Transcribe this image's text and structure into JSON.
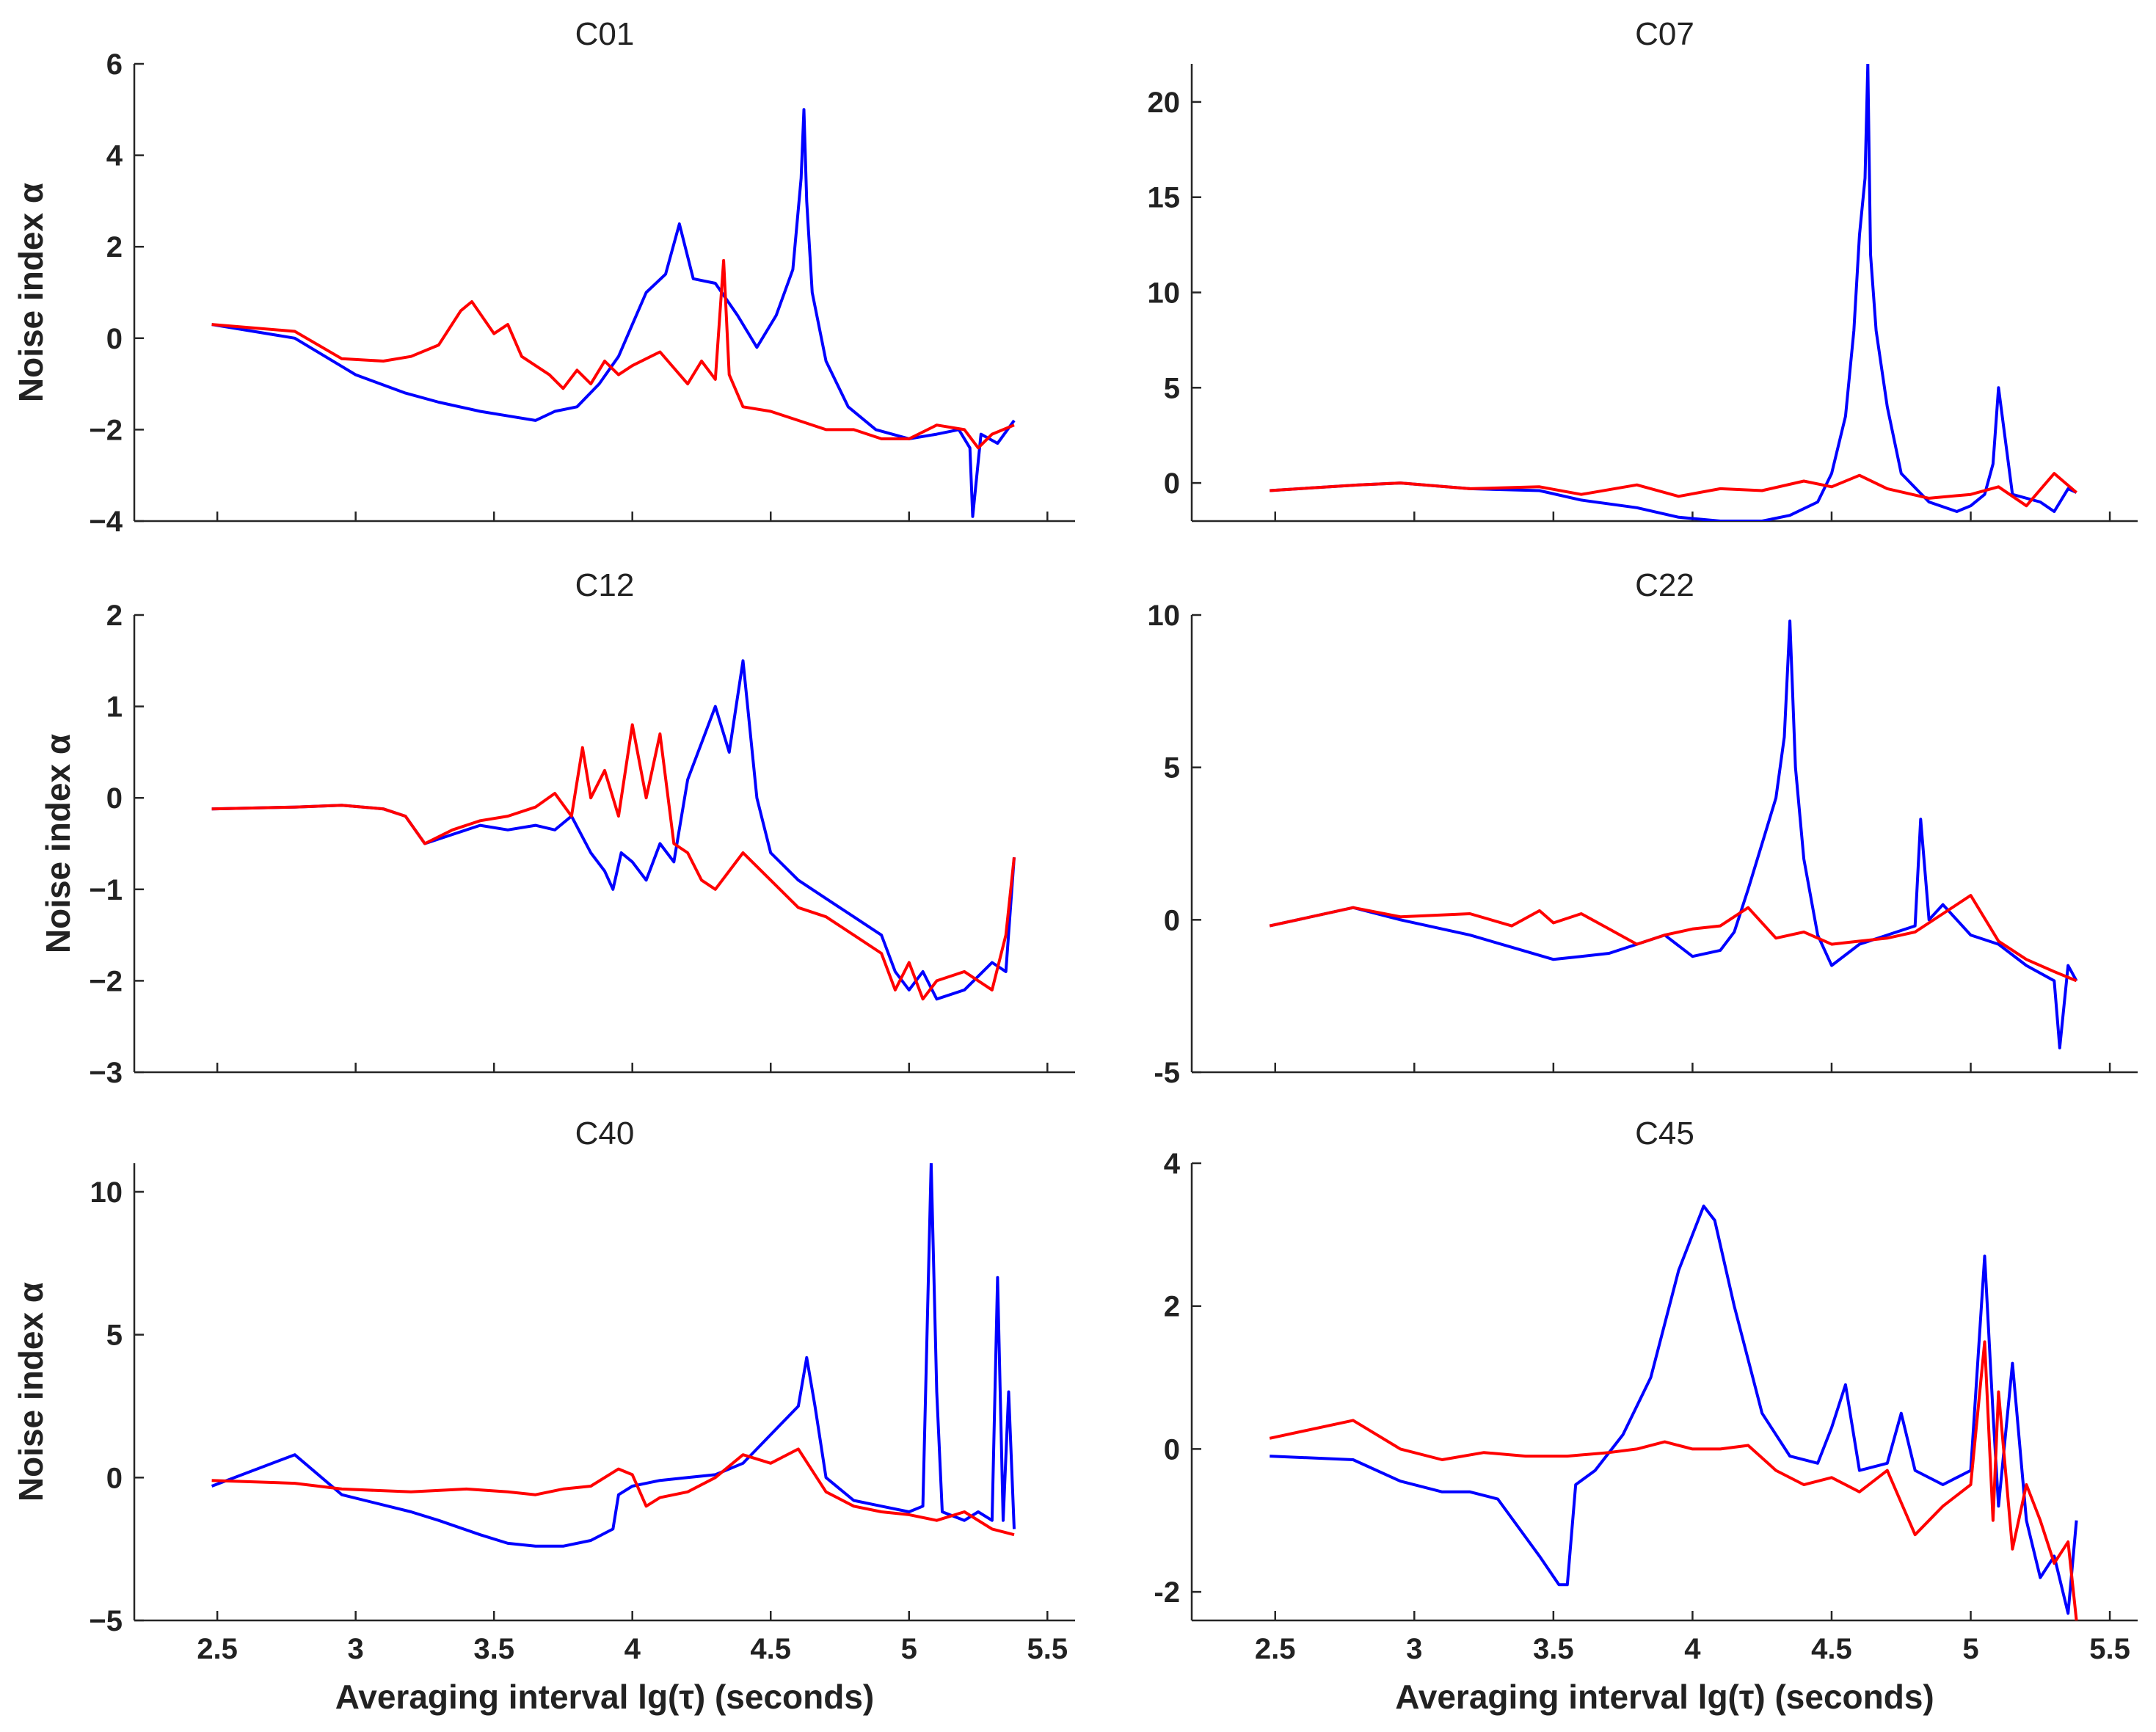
{
  "colors": {
    "series_1": "#0000ff",
    "series_2": "#ff0000",
    "axis": "#262626"
  },
  "chart_data": [
    {
      "type": "line",
      "title": "C01",
      "ylabel": "Noise index α",
      "xlabel": "",
      "xlim": [
        2.2,
        5.6
      ],
      "ylim": [
        -4,
        6
      ],
      "xticks": [
        2.5,
        3,
        3.5,
        4,
        4.5,
        5,
        5.5
      ],
      "xtick_labels": [
        "",
        "",
        "",
        "",
        "",
        "",
        ""
      ],
      "yticks": [
        -4,
        -2,
        0,
        2,
        4,
        6
      ],
      "ytick_labels": [
        "−4",
        "−2",
        "0",
        "2",
        "4",
        "6"
      ],
      "series": [
        {
          "name": "blue",
          "color": "#0000ff",
          "x": [
            2.48,
            2.78,
            3.0,
            3.18,
            3.3,
            3.45,
            3.55,
            3.65,
            3.72,
            3.8,
            3.88,
            3.95,
            4.0,
            4.05,
            4.12,
            4.17,
            4.22,
            4.3,
            4.38,
            4.45,
            4.52,
            4.58,
            4.61,
            4.62,
            4.63,
            4.65,
            4.7,
            4.78,
            4.88,
            5.0,
            5.1,
            5.18,
            5.22,
            5.23,
            5.26,
            5.32,
            5.38
          ],
          "y": [
            0.3,
            0.0,
            -0.8,
            -1.2,
            -1.4,
            -1.6,
            -1.7,
            -1.8,
            -1.6,
            -1.5,
            -1.0,
            -0.4,
            0.3,
            1.0,
            1.4,
            2.5,
            1.3,
            1.2,
            0.5,
            -0.2,
            0.5,
            1.5,
            3.5,
            5.0,
            3.0,
            1.0,
            -0.5,
            -1.5,
            -2.0,
            -2.2,
            -2.1,
            -2.0,
            -2.4,
            -3.9,
            -2.1,
            -2.3,
            -1.8
          ]
        },
        {
          "name": "red",
          "color": "#ff0000",
          "x": [
            2.48,
            2.78,
            2.95,
            3.1,
            3.2,
            3.3,
            3.38,
            3.42,
            3.5,
            3.55,
            3.6,
            3.7,
            3.75,
            3.8,
            3.85,
            3.9,
            3.95,
            4.0,
            4.1,
            4.2,
            4.25,
            4.3,
            4.33,
            4.35,
            4.4,
            4.5,
            4.6,
            4.7,
            4.8,
            4.9,
            5.0,
            5.1,
            5.2,
            5.25,
            5.3,
            5.38
          ],
          "y": [
            0.3,
            0.15,
            -0.45,
            -0.5,
            -0.4,
            -0.15,
            0.6,
            0.8,
            0.1,
            0.3,
            -0.4,
            -0.8,
            -1.1,
            -0.7,
            -1.0,
            -0.5,
            -0.8,
            -0.6,
            -0.3,
            -1.0,
            -0.5,
            -0.9,
            1.7,
            -0.8,
            -1.5,
            -1.6,
            -1.8,
            -2.0,
            -2.0,
            -2.2,
            -2.2,
            -1.9,
            -2.0,
            -2.4,
            -2.1,
            -1.9
          ]
        }
      ]
    },
    {
      "type": "line",
      "title": "C07",
      "ylabel": "",
      "xlabel": "",
      "xlim": [
        2.2,
        5.6
      ],
      "ylim": [
        -2,
        22
      ],
      "xticks": [
        2.5,
        3,
        3.5,
        4,
        4.5,
        5,
        5.5
      ],
      "xtick_labels": [
        "",
        "",
        "",
        "",
        "",
        "",
        ""
      ],
      "yticks": [
        0,
        5,
        10,
        15,
        20
      ],
      "ytick_labels": [
        "0",
        "5",
        "10",
        "15",
        "20"
      ],
      "series": [
        {
          "name": "blue",
          "color": "#0000ff",
          "x": [
            2.48,
            2.8,
            2.95,
            3.2,
            3.45,
            3.6,
            3.8,
            3.95,
            4.1,
            4.25,
            4.35,
            4.45,
            4.5,
            4.55,
            4.58,
            4.6,
            4.62,
            4.63,
            4.64,
            4.66,
            4.7,
            4.75,
            4.85,
            4.95,
            5.0,
            5.05,
            5.08,
            5.1,
            5.15,
            5.25,
            5.3,
            5.35,
            5.38
          ],
          "y": [
            -0.4,
            -0.1,
            0.0,
            -0.3,
            -0.4,
            -0.9,
            -1.3,
            -1.8,
            -2.0,
            -2.0,
            -1.7,
            -1.0,
            0.5,
            3.5,
            8.0,
            13.0,
            16.0,
            22.0,
            12.0,
            8.0,
            4.0,
            0.5,
            -1.0,
            -1.5,
            -1.2,
            -0.6,
            1.0,
            5.0,
            -0.6,
            -1.0,
            -1.5,
            -0.3,
            -0.5
          ]
        },
        {
          "name": "red",
          "color": "#ff0000",
          "x": [
            2.48,
            2.8,
            2.95,
            3.2,
            3.45,
            3.6,
            3.8,
            3.95,
            4.1,
            4.25,
            4.4,
            4.5,
            4.6,
            4.7,
            4.85,
            5.0,
            5.1,
            5.2,
            5.3,
            5.38
          ],
          "y": [
            -0.4,
            -0.1,
            0.0,
            -0.3,
            -0.2,
            -0.6,
            -0.1,
            -0.7,
            -0.3,
            -0.4,
            0.1,
            -0.2,
            0.4,
            -0.3,
            -0.8,
            -0.6,
            -0.2,
            -1.2,
            0.5,
            -0.5
          ]
        }
      ]
    },
    {
      "type": "line",
      "title": "C12",
      "ylabel": "Noise index α",
      "xlabel": "",
      "xlim": [
        2.2,
        5.6
      ],
      "ylim": [
        -3,
        2
      ],
      "xticks": [
        2.5,
        3,
        3.5,
        4,
        4.5,
        5,
        5.5
      ],
      "xtick_labels": [
        "",
        "",
        "",
        "",
        "",
        "",
        ""
      ],
      "yticks": [
        -3,
        -2,
        -1,
        0,
        1,
        2
      ],
      "ytick_labels": [
        "−3",
        "−2",
        "−1",
        "0",
        "1",
        "2"
      ],
      "series": [
        {
          "name": "blue",
          "color": "#0000ff",
          "x": [
            2.48,
            2.78,
            2.95,
            3.1,
            3.18,
            3.25,
            3.35,
            3.45,
            3.55,
            3.65,
            3.72,
            3.78,
            3.85,
            3.9,
            3.93,
            3.96,
            4.0,
            4.05,
            4.1,
            4.15,
            4.2,
            4.25,
            4.3,
            4.35,
            4.4,
            4.45,
            4.5,
            4.6,
            4.7,
            4.8,
            4.9,
            4.95,
            5.0,
            5.05,
            5.1,
            5.2,
            5.3,
            5.35,
            5.38
          ],
          "y": [
            -0.12,
            -0.1,
            -0.08,
            -0.12,
            -0.2,
            -0.5,
            -0.4,
            -0.3,
            -0.35,
            -0.3,
            -0.35,
            -0.2,
            -0.6,
            -0.8,
            -1.0,
            -0.6,
            -0.7,
            -0.9,
            -0.5,
            -0.7,
            0.2,
            0.6,
            1.0,
            0.5,
            1.5,
            0.0,
            -0.6,
            -0.9,
            -1.1,
            -1.3,
            -1.5,
            -1.9,
            -2.1,
            -1.9,
            -2.2,
            -2.1,
            -1.8,
            -1.9,
            -0.65
          ]
        },
        {
          "name": "red",
          "color": "#ff0000",
          "x": [
            2.48,
            2.78,
            2.95,
            3.1,
            3.18,
            3.25,
            3.35,
            3.45,
            3.55,
            3.65,
            3.72,
            3.78,
            3.82,
            3.85,
            3.9,
            3.95,
            4.0,
            4.05,
            4.1,
            4.15,
            4.2,
            4.25,
            4.3,
            4.4,
            4.5,
            4.6,
            4.7,
            4.8,
            4.9,
            4.95,
            5.0,
            5.05,
            5.1,
            5.2,
            5.3,
            5.35,
            5.38
          ],
          "y": [
            -0.12,
            -0.1,
            -0.08,
            -0.12,
            -0.2,
            -0.5,
            -0.35,
            -0.25,
            -0.2,
            -0.1,
            0.05,
            -0.2,
            0.55,
            0.0,
            0.3,
            -0.2,
            0.8,
            0.0,
            0.7,
            -0.5,
            -0.6,
            -0.9,
            -1.0,
            -0.6,
            -0.9,
            -1.2,
            -1.3,
            -1.5,
            -1.7,
            -2.1,
            -1.8,
            -2.2,
            -2.0,
            -1.9,
            -2.1,
            -1.5,
            -0.65
          ]
        }
      ]
    },
    {
      "type": "line",
      "title": "C22",
      "ylabel": "",
      "xlabel": "",
      "xlim": [
        2.2,
        5.6
      ],
      "ylim": [
        -5,
        10
      ],
      "xticks": [
        2.5,
        3,
        3.5,
        4,
        4.5,
        5,
        5.5
      ],
      "xtick_labels": [
        "",
        "",
        "",
        "",
        "",
        "",
        ""
      ],
      "yticks": [
        -5,
        0,
        5,
        10
      ],
      "ytick_labels": [
        "-5",
        "0",
        "5",
        "10"
      ],
      "series": [
        {
          "name": "blue",
          "color": "#0000ff",
          "x": [
            2.48,
            2.78,
            2.95,
            3.2,
            3.35,
            3.5,
            3.6,
            3.7,
            3.8,
            3.9,
            4.0,
            4.1,
            4.15,
            4.2,
            4.25,
            4.3,
            4.33,
            4.35,
            4.37,
            4.4,
            4.45,
            4.5,
            4.6,
            4.7,
            4.8,
            4.82,
            4.85,
            4.9,
            5.0,
            5.1,
            5.2,
            5.3,
            5.32,
            5.35,
            5.38
          ],
          "y": [
            -0.2,
            0.4,
            0.0,
            -0.5,
            -0.9,
            -1.3,
            -1.2,
            -1.1,
            -0.8,
            -0.5,
            -1.2,
            -1.0,
            -0.4,
            1.0,
            2.5,
            4.0,
            6.0,
            9.8,
            5.0,
            2.0,
            -0.5,
            -1.5,
            -0.8,
            -0.5,
            -0.2,
            3.3,
            0.0,
            0.5,
            -0.5,
            -0.8,
            -1.5,
            -2.0,
            -4.2,
            -1.5,
            -2.0
          ]
        },
        {
          "name": "red",
          "color": "#ff0000",
          "x": [
            2.48,
            2.78,
            2.95,
            3.2,
            3.35,
            3.45,
            3.5,
            3.6,
            3.7,
            3.8,
            3.9,
            4.0,
            4.1,
            4.2,
            4.3,
            4.4,
            4.5,
            4.6,
            4.7,
            4.8,
            4.9,
            5.0,
            5.1,
            5.2,
            5.3,
            5.38
          ],
          "y": [
            -0.2,
            0.4,
            0.1,
            0.2,
            -0.2,
            0.3,
            -0.1,
            0.2,
            -0.3,
            -0.8,
            -0.5,
            -0.3,
            -0.2,
            0.4,
            -0.6,
            -0.4,
            -0.8,
            -0.7,
            -0.6,
            -0.4,
            0.2,
            0.8,
            -0.7,
            -1.3,
            -1.7,
            -2.0
          ]
        }
      ]
    },
    {
      "type": "line",
      "title": "C40",
      "ylabel": "Noise index α",
      "xlabel": "Averaging interval lg(τ) (seconds)",
      "xlim": [
        2.2,
        5.6
      ],
      "ylim": [
        -5,
        11
      ],
      "xticks": [
        2.5,
        3,
        3.5,
        4,
        4.5,
        5,
        5.5
      ],
      "xtick_labels": [
        "2.5",
        "3",
        "3.5",
        "4",
        "4.5",
        "5",
        "5.5"
      ],
      "yticks": [
        -5,
        0,
        5,
        10
      ],
      "ytick_labels": [
        "−5",
        "0",
        "5",
        "10"
      ],
      "series": [
        {
          "name": "blue",
          "color": "#0000ff",
          "x": [
            2.48,
            2.78,
            2.95,
            3.2,
            3.3,
            3.45,
            3.55,
            3.65,
            3.75,
            3.85,
            3.93,
            3.95,
            4.0,
            4.1,
            4.2,
            4.3,
            4.4,
            4.5,
            4.6,
            4.63,
            4.66,
            4.7,
            4.8,
            4.9,
            5.0,
            5.05,
            5.08,
            5.1,
            5.12,
            5.2,
            5.25,
            5.3,
            5.32,
            5.34,
            5.36,
            5.38
          ],
          "y": [
            -0.3,
            0.8,
            -0.6,
            -1.2,
            -1.5,
            -2.0,
            -2.3,
            -2.4,
            -2.4,
            -2.2,
            -1.8,
            -0.6,
            -0.3,
            -0.1,
            0.0,
            0.1,
            0.5,
            1.5,
            2.5,
            4.2,
            2.5,
            0.0,
            -0.8,
            -1.0,
            -1.2,
            -1.0,
            11.0,
            3.0,
            -1.2,
            -1.5,
            -1.2,
            -1.5,
            7.0,
            -1.5,
            3.0,
            -1.8
          ]
        },
        {
          "name": "red",
          "color": "#ff0000",
          "x": [
            2.48,
            2.78,
            2.95,
            3.2,
            3.4,
            3.55,
            3.65,
            3.75,
            3.85,
            3.95,
            4.0,
            4.05,
            4.1,
            4.2,
            4.3,
            4.4,
            4.5,
            4.6,
            4.7,
            4.8,
            4.9,
            5.0,
            5.1,
            5.2,
            5.3,
            5.38
          ],
          "y": [
            -0.1,
            -0.2,
            -0.4,
            -0.5,
            -0.4,
            -0.5,
            -0.6,
            -0.4,
            -0.3,
            0.3,
            0.1,
            -1.0,
            -0.7,
            -0.5,
            0.0,
            0.8,
            0.5,
            1.0,
            -0.5,
            -1.0,
            -1.2,
            -1.3,
            -1.5,
            -1.2,
            -1.8,
            -2.0
          ]
        }
      ]
    },
    {
      "type": "line",
      "title": "C45",
      "ylabel": "",
      "xlabel": "Averaging interval lg(τ) (seconds)",
      "xlim": [
        2.2,
        5.6
      ],
      "ylim": [
        -2.4,
        4
      ],
      "xticks": [
        2.5,
        3,
        3.5,
        4,
        4.5,
        5,
        5.5
      ],
      "xtick_labels": [
        "2.5",
        "3",
        "3.5",
        "4",
        "4.5",
        "5",
        "5.5"
      ],
      "yticks": [
        -2,
        0,
        2,
        4
      ],
      "ytick_labels": [
        "-2",
        "0",
        "2",
        "4"
      ],
      "series": [
        {
          "name": "blue",
          "color": "#0000ff",
          "x": [
            2.48,
            2.78,
            2.95,
            3.1,
            3.2,
            3.3,
            3.45,
            3.52,
            3.55,
            3.58,
            3.65,
            3.75,
            3.85,
            3.95,
            4.0,
            4.04,
            4.08,
            4.15,
            4.25,
            4.35,
            4.45,
            4.5,
            4.55,
            4.6,
            4.7,
            4.75,
            4.8,
            4.9,
            5.0,
            5.05,
            5.08,
            5.1,
            5.15,
            5.2,
            5.25,
            5.3,
            5.35,
            5.38
          ],
          "y": [
            -0.1,
            -0.15,
            -0.45,
            -0.6,
            -0.6,
            -0.7,
            -1.5,
            -1.9,
            -1.9,
            -0.5,
            -0.3,
            0.2,
            1.0,
            2.5,
            3.0,
            3.4,
            3.2,
            2.0,
            0.5,
            -0.1,
            -0.2,
            0.3,
            0.9,
            -0.3,
            -0.2,
            0.5,
            -0.3,
            -0.5,
            -0.3,
            2.7,
            0.5,
            -0.8,
            1.2,
            -1.0,
            -1.8,
            -1.5,
            -2.3,
            -1.0
          ]
        },
        {
          "name": "red",
          "color": "#ff0000",
          "x": [
            2.48,
            2.78,
            2.95,
            3.1,
            3.25,
            3.4,
            3.55,
            3.7,
            3.8,
            3.9,
            4.0,
            4.1,
            4.2,
            4.3,
            4.4,
            4.5,
            4.6,
            4.7,
            4.8,
            4.9,
            5.0,
            5.05,
            5.08,
            5.1,
            5.15,
            5.2,
            5.25,
            5.3,
            5.35,
            5.38
          ],
          "y": [
            0.15,
            0.4,
            0.0,
            -0.15,
            -0.05,
            -0.1,
            -0.1,
            -0.05,
            0.0,
            0.1,
            0.0,
            0.0,
            0.05,
            -0.3,
            -0.5,
            -0.4,
            -0.6,
            -0.3,
            -1.2,
            -0.8,
            -0.5,
            1.5,
            -1.0,
            0.8,
            -1.4,
            -0.5,
            -1.0,
            -1.6,
            -1.3,
            -2.4
          ]
        }
      ]
    }
  ]
}
